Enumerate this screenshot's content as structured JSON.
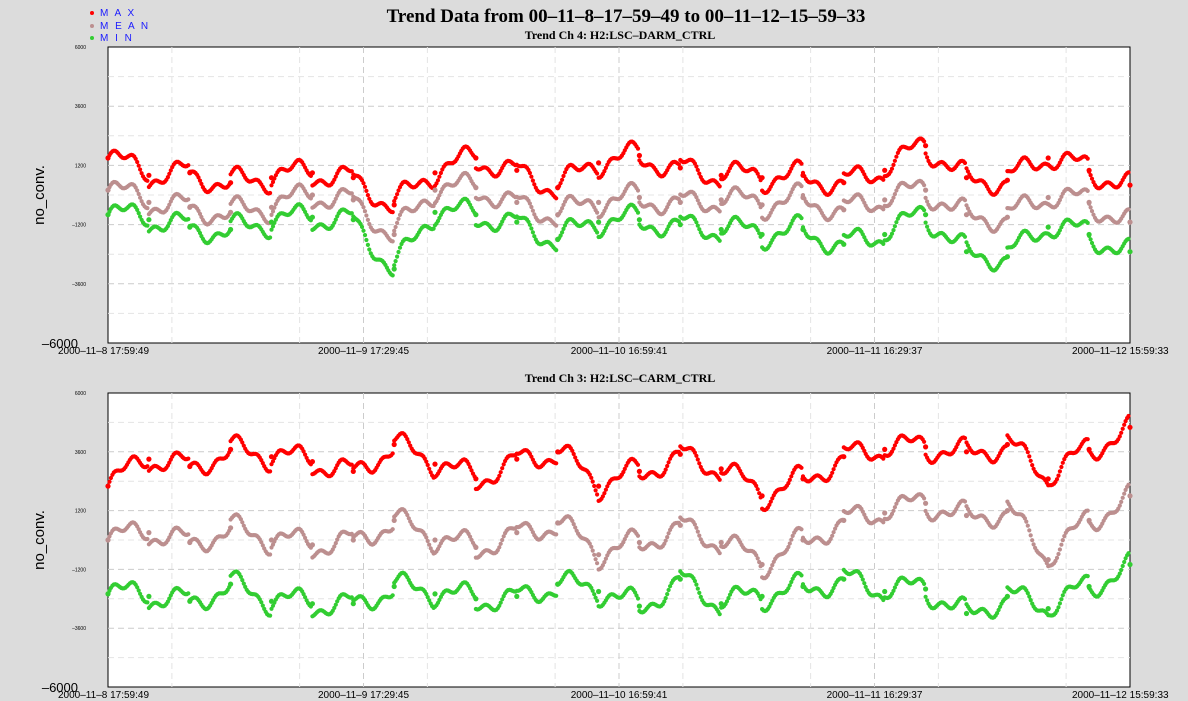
{
  "title": "Trend Data from 00–11–8–17–59–49 to 00–11–12–15–59–33",
  "legend": [
    {
      "label": "M A X",
      "color": "#ff0000"
    },
    {
      "label": "M E A N",
      "color": "#bc8f8f"
    },
    {
      "label": "M I N",
      "color": "#32cd32"
    }
  ],
  "chart_data": [
    {
      "type": "scatter",
      "title": "Trend Ch 4: H2:LSC–DARM_CTRL",
      "ylabel": "no_conv.",
      "ylim": [
        -6000,
        6000
      ],
      "ytick_labels": [
        "6000",
        "3600",
        "1200",
        "–1200",
        "–3600",
        "–6000"
      ],
      "xtick_labels": [
        "2000–11–8 17:59:49",
        "2000–11–9 17:29:45",
        "2000–11–10 16:59:41",
        "2000–11–11 16:29:37",
        "2000–11–12 15:59:33"
      ],
      "x": [
        0,
        0.04,
        0.08,
        0.12,
        0.16,
        0.2,
        0.24,
        0.28,
        0.32,
        0.36,
        0.4,
        0.44,
        0.48,
        0.52,
        0.56,
        0.6,
        0.64,
        0.68,
        0.72,
        0.76,
        0.8,
        0.84,
        0.88,
        0.92,
        0.96,
        1
      ],
      "series": [
        {
          "name": "MAX",
          "color": "#ff0000",
          "values": [
            1500,
            800,
            900,
            500,
            700,
            900,
            700,
            -400,
            900,
            1500,
            1000,
            300,
            1300,
            1600,
            1100,
            800,
            700,
            800,
            500,
            1000,
            2000,
            700,
            600,
            1500,
            1000,
            400
          ]
        },
        {
          "name": "MEAN",
          "color": "#bc8f8f",
          "values": [
            200,
            -300,
            -500,
            -700,
            -500,
            0,
            -200,
            -1600,
            200,
            300,
            -300,
            -800,
            -300,
            -100,
            -300,
            -200,
            -400,
            -100,
            -600,
            -200,
            200,
            -800,
            -900,
            -100,
            -300,
            -1100
          ]
        },
        {
          "name": "MIN",
          "color": "#32cd32",
          "values": [
            -800,
            -1000,
            -1300,
            -1400,
            -1100,
            -900,
            -1000,
            -3000,
            -700,
            -800,
            -1100,
            -1800,
            -1100,
            -1000,
            -1200,
            -1400,
            -1600,
            -1400,
            -2000,
            -1600,
            -800,
            -2300,
            -2500,
            -1300,
            -1600,
            -2300
          ]
        }
      ]
    },
    {
      "type": "scatter",
      "title": "Trend Ch 3: H2:LSC–CARM_CTRL",
      "ylabel": "no_conv.",
      "ylim": [
        -6000,
        6000
      ],
      "ytick_labels": [
        "6000",
        "3600",
        "1200",
        "–1200",
        "–3600",
        "–6000"
      ],
      "xtick_labels": [
        "2000–11–8 17:59:49",
        "2000–11–9 17:29:45",
        "2000–11–10 16:59:41",
        "2000–11–11 16:29:37",
        "2000–11–12 15:59:33"
      ],
      "x": [
        0,
        0.04,
        0.08,
        0.12,
        0.16,
        0.2,
        0.24,
        0.28,
        0.32,
        0.36,
        0.4,
        0.44,
        0.48,
        0.52,
        0.56,
        0.6,
        0.64,
        0.68,
        0.72,
        0.76,
        0.8,
        0.84,
        0.88,
        0.92,
        0.96,
        1
      ],
      "series": [
        {
          "name": "MAX",
          "color": "#ff0000",
          "values": [
            2200,
            3300,
            3000,
            3700,
            3400,
            3200,
            2800,
            3900,
            3100,
            2500,
            3300,
            3600,
            2200,
            2800,
            3500,
            2900,
            1800,
            2500,
            3400,
            3700,
            3800,
            3600,
            3900,
            2500,
            3700,
            4600
          ]
        },
        {
          "name": "MEAN",
          "color": "#bc8f8f",
          "values": [
            0,
            300,
            -100,
            500,
            0,
            -200,
            0,
            800,
            0,
            -300,
            300,
            700,
            -600,
            -100,
            600,
            -100,
            -1000,
            0,
            800,
            1100,
            1500,
            1000,
            1200,
            -800,
            800,
            1800
          ]
        },
        {
          "name": "MIN",
          "color": "#32cd32",
          "values": [
            -2200,
            -2300,
            -2500,
            -1800,
            -2500,
            -2600,
            -2600,
            -1900,
            -2200,
            -2400,
            -2300,
            -1800,
            -2100,
            -2700,
            -1600,
            -2600,
            -2300,
            -1900,
            -1600,
            -2100,
            -2000,
            -3000,
            -2300,
            -2800,
            -1900,
            -1000
          ]
        }
      ]
    }
  ]
}
